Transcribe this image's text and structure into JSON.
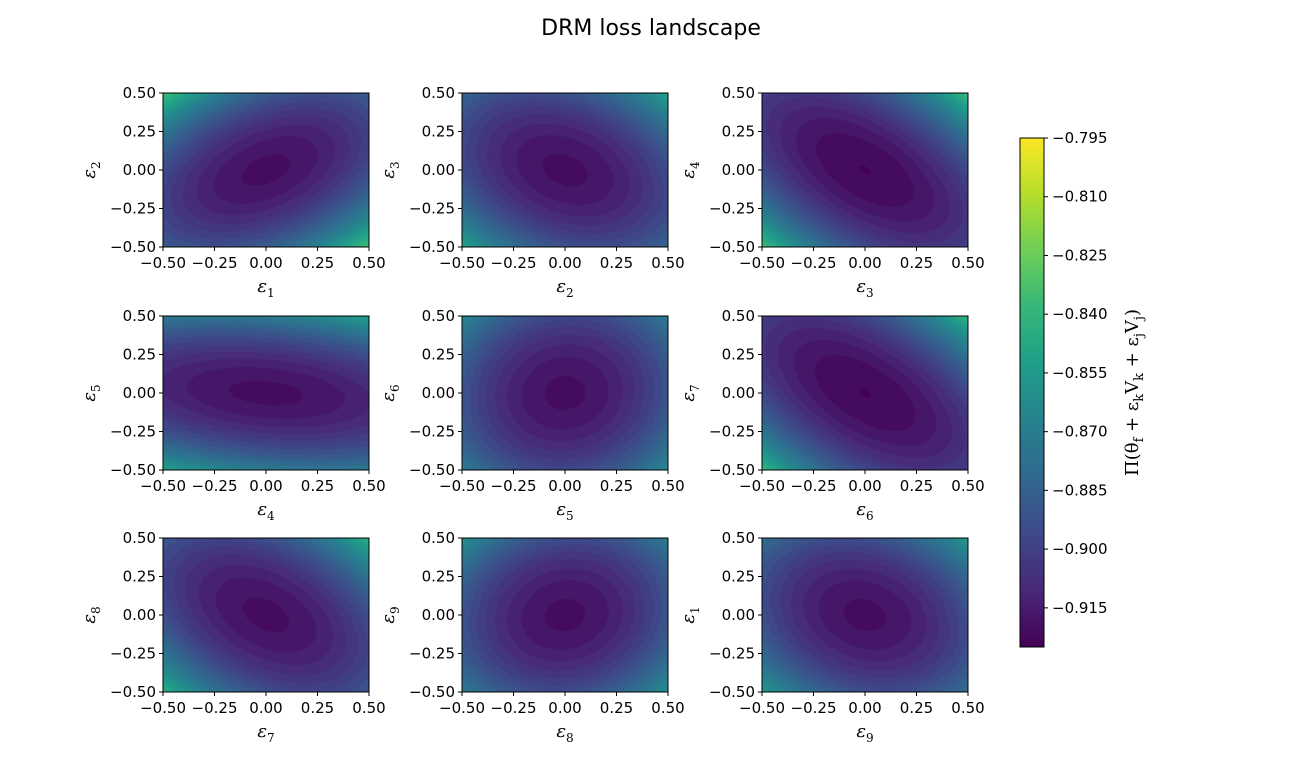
{
  "chart_data": {
    "type": "heatmap",
    "title": "DRM loss landscape",
    "colormap": "viridis",
    "colorbar": {
      "label": "Π(θ_f + ε_k V_k + ε_j V_j)",
      "label_main": "Π(θ",
      "label_sub_f": "f",
      "label_mid1": " + ε",
      "label_sub_k": "k",
      "label_mid2": "V",
      "label_sub_k2": "k",
      "label_mid3": " + ε",
      "label_sub_j": "j",
      "label_mid4": "V",
      "label_sub_j2": "j",
      "label_end": ")",
      "range": [
        -0.925,
        -0.795
      ],
      "ticks": [
        -0.795,
        -0.81,
        -0.825,
        -0.84,
        -0.855,
        -0.87,
        -0.885,
        -0.9,
        -0.915
      ],
      "tick_labels": [
        "−0.795",
        "−0.810",
        "−0.825",
        "−0.840",
        "−0.855",
        "−0.870",
        "−0.885",
        "−0.900",
        "−0.915"
      ]
    },
    "axis_range": [
      -0.5,
      0.5
    ],
    "x_ticks": [
      -0.5,
      -0.25,
      0.0,
      0.25,
      0.5
    ],
    "x_tick_labels": [
      "−0.50",
      "−0.25",
      "0.00",
      "0.25",
      "0.50"
    ],
    "y_ticks": [
      0.5,
      0.25,
      0.0,
      -0.25,
      -0.5
    ],
    "y_tick_labels": [
      "0.50",
      "0.25",
      "0.00",
      "−0.25",
      "−0.50"
    ],
    "subplots": [
      {
        "xlabel": "ε1",
        "x_sym": "ε",
        "x_sub": "1",
        "ylabel": "ε2",
        "y_sym": "ε",
        "y_sub": "2",
        "min": -0.918,
        "a": 0.22,
        "b": 0.29,
        "c": -0.23
      },
      {
        "xlabel": "ε2",
        "x_sym": "ε",
        "x_sub": "2",
        "ylabel": "ε3",
        "y_sym": "ε",
        "y_sub": "3",
        "min": -0.918,
        "a": 0.22,
        "b": 0.24,
        "c": 0.14
      },
      {
        "xlabel": "ε3",
        "x_sym": "ε",
        "x_sub": "3",
        "ylabel": "ε4",
        "y_sym": "ε",
        "y_sub": "4",
        "min": -0.921,
        "a": 0.23,
        "b": 0.23,
        "c": 0.27
      },
      {
        "xlabel": "ε4",
        "x_sym": "ε",
        "x_sub": "4",
        "ylabel": "ε5",
        "y_sym": "ε",
        "y_sub": "5",
        "min": -0.918,
        "a": 0.08,
        "b": 0.42,
        "c": 0.09
      },
      {
        "xlabel": "ε5",
        "x_sym": "ε",
        "x_sub": "5",
        "ylabel": "ε6",
        "y_sym": "ε",
        "y_sub": "6",
        "min": -0.918,
        "a": 0.25,
        "b": 0.2,
        "c": -0.03
      },
      {
        "xlabel": "ε6",
        "x_sym": "ε",
        "x_sub": "6",
        "ylabel": "ε7",
        "y_sym": "ε",
        "y_sub": "7",
        "min": -0.921,
        "a": 0.22,
        "b": 0.22,
        "c": 0.26
      },
      {
        "xlabel": "ε7",
        "x_sym": "ε",
        "x_sub": "7",
        "ylabel": "ε8",
        "y_sym": "ε",
        "y_sub": "8",
        "min": -0.918,
        "a": 0.23,
        "b": 0.23,
        "c": 0.2
      },
      {
        "xlabel": "ε8",
        "x_sym": "ε",
        "x_sub": "8",
        "ylabel": "ε9",
        "y_sym": "ε",
        "y_sub": "9",
        "min": -0.918,
        "a": 0.25,
        "b": 0.22,
        "c": -0.05
      },
      {
        "xlabel": "ε9",
        "x_sym": "ε",
        "x_sub": "9",
        "ylabel": "ε1",
        "y_sym": "ε",
        "y_sub": "1",
        "min": -0.918,
        "a": 0.23,
        "b": 0.23,
        "c": 0.1
      }
    ]
  },
  "colors": {
    "viridis": [
      "#440154",
      "#482878",
      "#3e4989",
      "#31688e",
      "#26828e",
      "#1f9e89",
      "#35b779",
      "#6ece58",
      "#b5de2b",
      "#fde725"
    ]
  }
}
